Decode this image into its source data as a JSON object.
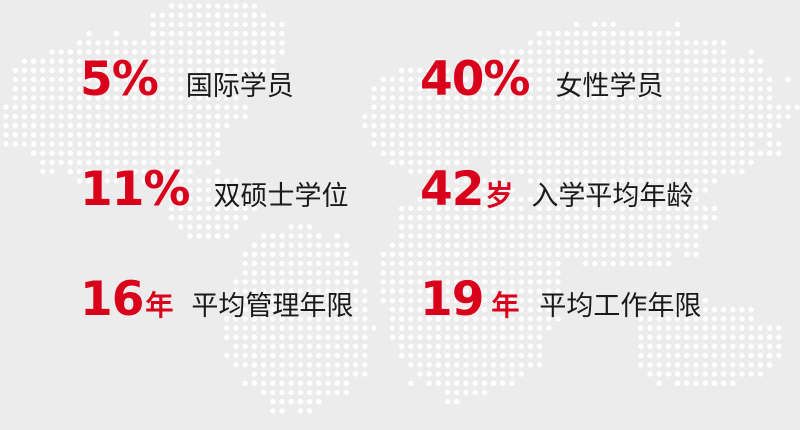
{
  "colors": {
    "accent": "#d9001b",
    "text": "#1a1a1a",
    "background": "#ececec",
    "map_dots": "#ffffff"
  },
  "stats": [
    {
      "value": "5%",
      "unit": "",
      "label": "国际学员"
    },
    {
      "value": "40%",
      "unit": "",
      "label": "女性学员"
    },
    {
      "value": "11%",
      "unit": "",
      "label": "双硕士学位"
    },
    {
      "value": "42",
      "unit": "岁",
      "label": "入学平均年龄"
    },
    {
      "value": "16",
      "unit": "年",
      "label": "平均管理年限"
    },
    {
      "value": "19",
      "unit": "年",
      "label": "平均工作年限"
    }
  ]
}
